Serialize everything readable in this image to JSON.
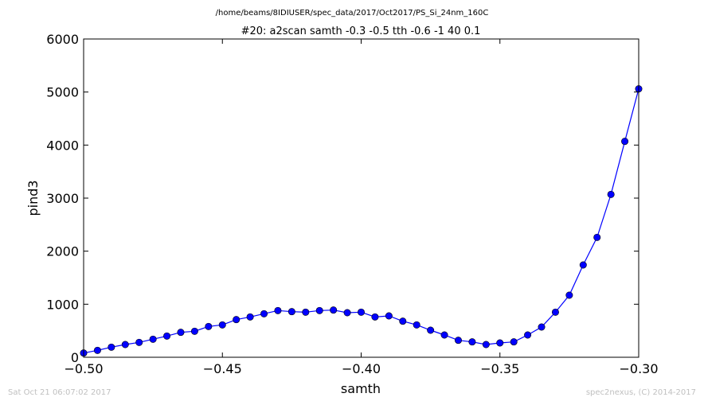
{
  "figure": {
    "suptitle": "/home/beams/8IDIUSER/spec_data/2017/Oct2017/PS_Si_24nm_160C",
    "timestamp": "Sat Oct 21 06:07:02 2017",
    "credit": "spec2nexus, (C) 2014-2017"
  },
  "chart_data": {
    "type": "line",
    "title": "#20: a2scan  samth -0.3 -0.5  tth -0.6 -1  40 0.1",
    "xlabel": "samth",
    "ylabel": "pind3",
    "xlim": [
      -0.5,
      -0.3
    ],
    "ylim": [
      0,
      6000
    ],
    "xticks": [
      -0.5,
      -0.45,
      -0.4,
      -0.35,
      -0.3
    ],
    "xtick_labels": [
      "−0.50",
      "−0.45",
      "−0.40",
      "−0.35",
      "−0.30"
    ],
    "yticks": [
      0,
      1000,
      2000,
      3000,
      4000,
      5000,
      6000
    ],
    "ytick_labels": [
      "0",
      "1000",
      "2000",
      "3000",
      "4000",
      "5000",
      "6000"
    ],
    "grid": false,
    "marker": "circle",
    "color": "#0000ff",
    "series": [
      {
        "x": [
          -0.5,
          -0.495,
          -0.49,
          -0.485,
          -0.48,
          -0.475,
          -0.47,
          -0.465,
          -0.46,
          -0.455,
          -0.45,
          -0.445,
          -0.44,
          -0.435,
          -0.43,
          -0.425,
          -0.42,
          -0.415,
          -0.41,
          -0.405,
          -0.4,
          -0.395,
          -0.39,
          -0.385,
          -0.38,
          -0.375,
          -0.37,
          -0.365,
          -0.36,
          -0.355,
          -0.35,
          -0.345,
          -0.34,
          -0.335,
          -0.33,
          -0.325,
          -0.32,
          -0.315,
          -0.31,
          -0.305,
          -0.3
        ],
        "values": [
          80,
          130,
          190,
          240,
          280,
          340,
          400,
          470,
          490,
          580,
          610,
          710,
          760,
          820,
          880,
          860,
          850,
          880,
          890,
          840,
          850,
          760,
          780,
          680,
          610,
          510,
          420,
          320,
          290,
          240,
          270,
          290,
          420,
          570,
          850,
          1170,
          1740,
          2260,
          3070,
          4070,
          5060
        ]
      }
    ]
  }
}
